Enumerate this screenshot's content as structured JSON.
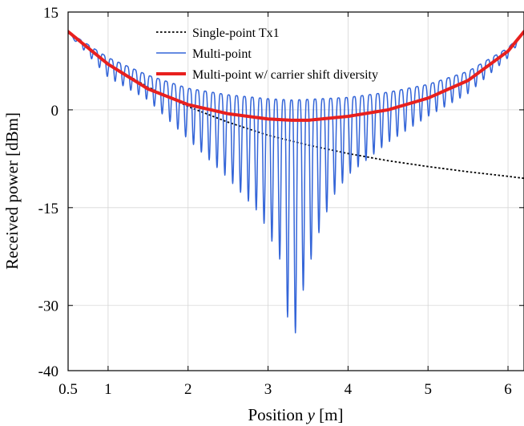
{
  "chart_data": {
    "type": "line",
    "xlabel_prefix": "Position ",
    "xlabel_var": "y",
    "xlabel_suffix": " [m]",
    "ylabel": "Received power [dBm]",
    "xlim": [
      0.5,
      6.2
    ],
    "ylim": [
      -40,
      15
    ],
    "xticks": [
      0.5,
      1,
      2,
      3,
      4,
      5,
      6
    ],
    "xtick_labels": [
      "0.5",
      "1",
      "2",
      "3",
      "4",
      "5",
      "6"
    ],
    "yticks": [
      15,
      0,
      -15,
      -30,
      -40
    ],
    "ytick_labels": [
      "15",
      "0",
      "-15",
      "-30",
      "-40"
    ],
    "legend_position": "top-center",
    "series": [
      {
        "name": "Single-point Tx1",
        "style": "dotted",
        "color": "#000000",
        "x": [
          0.5,
          1.0,
          1.5,
          2.0,
          2.5,
          3.0,
          3.5,
          4.0,
          4.5,
          5.0,
          5.5,
          6.0,
          6.2
        ],
        "y": [
          12.0,
          7.0,
          3.5,
          0.5,
          -1.9,
          -3.9,
          -5.4,
          -6.7,
          -7.8,
          -8.7,
          -9.5,
          -10.2,
          -10.5
        ]
      },
      {
        "name": "Multi-point",
        "style": "solid",
        "color": "#3465d8",
        "envelope_note": "oscillating between upper envelope and notches",
        "upper_x": [
          0.5,
          1.0,
          1.5,
          2.0,
          2.5,
          3.0,
          3.3,
          3.5,
          4.0,
          4.5,
          5.0,
          5.5,
          6.0,
          6.2
        ],
        "upper_y": [
          12.0,
          8.0,
          5.3,
          3.3,
          2.3,
          1.7,
          1.5,
          1.6,
          1.9,
          2.7,
          3.9,
          5.9,
          9.5,
          12.0
        ],
        "dip_centers": [
          0.598,
          0.696,
          0.794,
          0.892,
          0.99,
          1.088,
          1.186,
          1.284,
          1.382,
          1.48,
          1.578,
          1.676,
          1.774,
          1.872,
          1.97,
          2.068,
          2.166,
          2.264,
          2.362,
          2.46,
          2.558,
          2.656,
          2.754,
          2.852,
          2.95,
          3.048,
          3.146,
          3.244,
          3.342,
          3.44,
          3.538,
          3.636,
          3.734,
          3.832,
          3.93,
          4.028,
          4.126,
          4.224,
          4.322,
          4.42,
          4.518,
          4.616,
          4.714,
          4.812,
          4.91,
          5.008,
          5.106,
          5.204,
          5.302,
          5.4,
          5.498,
          5.596,
          5.694,
          5.792,
          5.89,
          5.988,
          6.086
        ],
        "dip_x": [
          0.6,
          1.0,
          1.5,
          2.0,
          2.5,
          2.9,
          3.15,
          3.3,
          3.45,
          3.6,
          3.8,
          4.0,
          4.5,
          5.0,
          5.5,
          6.0,
          6.2
        ],
        "dip_y": [
          10.5,
          5.0,
          1.5,
          -4.5,
          -10.5,
          -16.0,
          -23.0,
          -37.0,
          -27.0,
          -20.0,
          -13.5,
          -10.0,
          -5.0,
          -1.0,
          2.5,
          8.0,
          11.5
        ]
      },
      {
        "name": "Multi-point w/ carrier shift diversity",
        "style": "solid-thick",
        "color": "#e8201e",
        "x": [
          0.5,
          1.0,
          1.5,
          2.0,
          2.5,
          3.0,
          3.3,
          3.5,
          4.0,
          4.5,
          5.0,
          5.5,
          6.0,
          6.2
        ],
        "y": [
          12.0,
          7.0,
          3.2,
          0.8,
          -0.6,
          -1.4,
          -1.6,
          -1.6,
          -1.0,
          0.0,
          1.8,
          4.5,
          9.0,
          12.0
        ]
      }
    ]
  }
}
